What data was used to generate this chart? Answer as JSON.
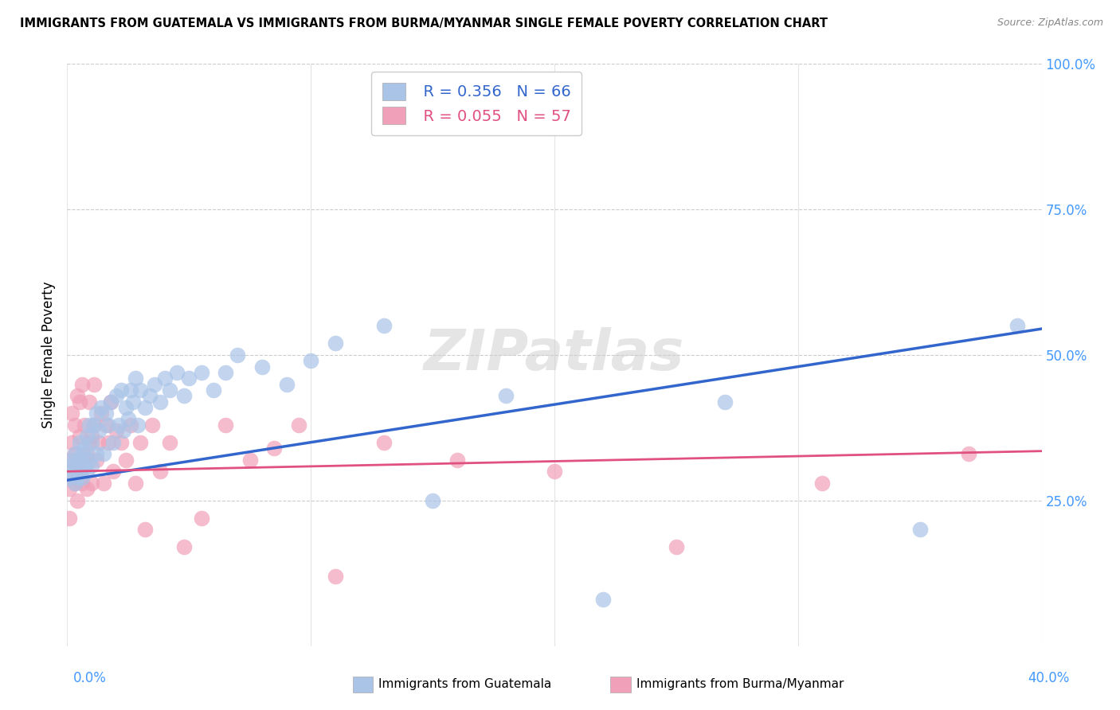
{
  "title": "IMMIGRANTS FROM GUATEMALA VS IMMIGRANTS FROM BURMA/MYANMAR SINGLE FEMALE POVERTY CORRELATION CHART",
  "source": "Source: ZipAtlas.com",
  "ylabel": "Single Female Poverty",
  "yticks": [
    0.0,
    0.25,
    0.5,
    0.75,
    1.0
  ],
  "ytick_labels": [
    "",
    "25.0%",
    "50.0%",
    "75.0%",
    "100.0%"
  ],
  "legend_blue_R": "R = 0.356",
  "legend_blue_N": "N = 66",
  "legend_pink_R": "R = 0.055",
  "legend_pink_N": "N = 57",
  "legend_blue_label": "Immigrants from Guatemala",
  "legend_pink_label": "Immigrants from Burma/Myanmar",
  "watermark": "ZIPatlas",
  "blue_color": "#aac4e8",
  "pink_color": "#f0a0b8",
  "trend_blue_color": "#3366cc",
  "trend_pink_color": "#e05080",
  "background_color": "#ffffff",
  "guatemala_x": [
    0.001,
    0.001,
    0.002,
    0.002,
    0.003,
    0.003,
    0.004,
    0.004,
    0.005,
    0.005,
    0.005,
    0.006,
    0.006,
    0.007,
    0.007,
    0.008,
    0.008,
    0.009,
    0.009,
    0.01,
    0.01,
    0.011,
    0.012,
    0.012,
    0.013,
    0.014,
    0.015,
    0.016,
    0.017,
    0.018,
    0.019,
    0.02,
    0.021,
    0.022,
    0.023,
    0.024,
    0.025,
    0.026,
    0.027,
    0.028,
    0.029,
    0.03,
    0.032,
    0.034,
    0.036,
    0.038,
    0.04,
    0.042,
    0.045,
    0.048,
    0.05,
    0.055,
    0.06,
    0.065,
    0.07,
    0.08,
    0.09,
    0.1,
    0.11,
    0.13,
    0.15,
    0.18,
    0.22,
    0.27,
    0.35,
    0.39
  ],
  "guatemala_y": [
    0.29,
    0.31,
    0.3,
    0.32,
    0.28,
    0.33,
    0.31,
    0.29,
    0.32,
    0.3,
    0.35,
    0.29,
    0.33,
    0.31,
    0.34,
    0.3,
    0.36,
    0.32,
    0.38,
    0.31,
    0.35,
    0.38,
    0.33,
    0.4,
    0.37,
    0.41,
    0.33,
    0.4,
    0.38,
    0.42,
    0.35,
    0.43,
    0.38,
    0.44,
    0.37,
    0.41,
    0.39,
    0.44,
    0.42,
    0.46,
    0.38,
    0.44,
    0.41,
    0.43,
    0.45,
    0.42,
    0.46,
    0.44,
    0.47,
    0.43,
    0.46,
    0.47,
    0.44,
    0.47,
    0.5,
    0.48,
    0.45,
    0.49,
    0.52,
    0.55,
    0.25,
    0.43,
    0.08,
    0.42,
    0.2,
    0.55
  ],
  "burma_x": [
    0.001,
    0.001,
    0.001,
    0.002,
    0.002,
    0.002,
    0.003,
    0.003,
    0.003,
    0.004,
    0.004,
    0.005,
    0.005,
    0.005,
    0.006,
    0.006,
    0.007,
    0.007,
    0.008,
    0.008,
    0.009,
    0.009,
    0.01,
    0.01,
    0.011,
    0.011,
    0.012,
    0.013,
    0.014,
    0.015,
    0.016,
    0.017,
    0.018,
    0.019,
    0.02,
    0.022,
    0.024,
    0.026,
    0.028,
    0.03,
    0.032,
    0.035,
    0.038,
    0.042,
    0.048,
    0.055,
    0.065,
    0.075,
    0.085,
    0.095,
    0.11,
    0.13,
    0.16,
    0.2,
    0.25,
    0.31,
    0.37
  ],
  "burma_y": [
    0.27,
    0.32,
    0.22,
    0.29,
    0.35,
    0.4,
    0.28,
    0.33,
    0.38,
    0.25,
    0.43,
    0.3,
    0.36,
    0.42,
    0.28,
    0.45,
    0.32,
    0.38,
    0.27,
    0.33,
    0.35,
    0.42,
    0.28,
    0.36,
    0.38,
    0.45,
    0.32,
    0.35,
    0.4,
    0.28,
    0.38,
    0.35,
    0.42,
    0.3,
    0.37,
    0.35,
    0.32,
    0.38,
    0.28,
    0.35,
    0.2,
    0.38,
    0.3,
    0.35,
    0.17,
    0.22,
    0.38,
    0.32,
    0.34,
    0.38,
    0.12,
    0.35,
    0.32,
    0.3,
    0.17,
    0.28,
    0.33
  ],
  "blue_trendline_x": [
    0.0,
    0.4
  ],
  "blue_trendline_y": [
    0.285,
    0.545
  ],
  "pink_trendline_x": [
    0.0,
    0.4
  ],
  "pink_trendline_y": [
    0.3,
    0.335
  ],
  "xlim": [
    0.0,
    0.4
  ],
  "ylim": [
    0.0,
    1.0
  ],
  "xtick_left_label": "0.0%",
  "xtick_right_label": "40.0%"
}
